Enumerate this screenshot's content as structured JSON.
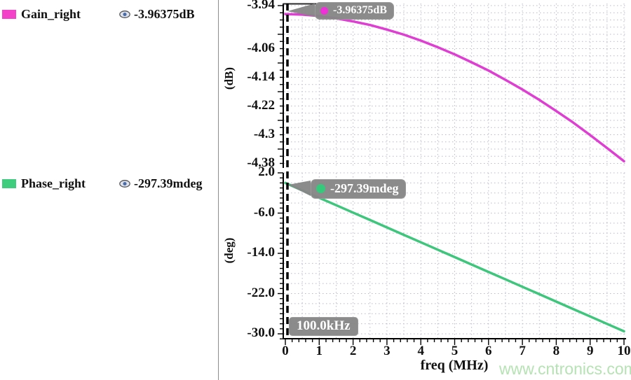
{
  "legend": {
    "items": [
      {
        "id": "gain",
        "label": "Gain_right",
        "value": "-3.96375dB",
        "swatch_color": "#f441c9"
      },
      {
        "id": "phase",
        "label": "Phase_right",
        "value": "-297.39mdeg",
        "swatch_color": "#3ecc7e"
      }
    ]
  },
  "marker": {
    "freq_label": "100.0kHz",
    "gain_value": "-3.96375dB",
    "phase_value": "-297.39mdeg"
  },
  "watermark": "www.cntronics.com",
  "colors": {
    "gain_curve": "#de3ed2",
    "phase_curve": "#3ec67c",
    "tooltip_bg": "#868686",
    "grid": "#b9b9c9",
    "marker_line": "#000000",
    "watermark": "#b6e3b3",
    "divider": "#8c8c8c"
  },
  "chart_data": [
    {
      "type": "line",
      "name": "Gain_right",
      "ylabel": "(dB)",
      "color": "#de3ed2",
      "xlim": [
        0,
        10
      ],
      "ylim": [
        -4.393,
        -3.934
      ],
      "grid": true,
      "yticks": {
        "labels": [
          "-3.94",
          "-4.06",
          "-4.14",
          "-4.22",
          "-4.3",
          "-4.38"
        ],
        "values": [
          -3.94,
          -4.06,
          -4.14,
          -4.22,
          -4.3,
          -4.38
        ]
      },
      "marker_point": {
        "freq_mhz": 0.1,
        "value_db": -3.96375,
        "label": "-3.96375dB"
      },
      "x": [
        0,
        0.5,
        1,
        1.5,
        2,
        2.5,
        3,
        3.5,
        4,
        4.5,
        5,
        5.5,
        6,
        6.5,
        7,
        7.5,
        8,
        8.5,
        9,
        9.5,
        10
      ],
      "y": [
        -3.9637,
        -3.9652,
        -3.969,
        -3.9755,
        -3.984,
        -3.994,
        -4.007,
        -4.021,
        -4.0375,
        -4.056,
        -4.076,
        -4.098,
        -4.121,
        -4.147,
        -4.174,
        -4.203,
        -4.234,
        -4.266,
        -4.301,
        -4.337,
        -4.374
      ]
    },
    {
      "type": "line",
      "name": "Phase_right",
      "ylabel": "(deg)",
      "xlabel": "freq (MHz)",
      "color": "#3ec67c",
      "xlim": [
        0,
        10
      ],
      "ylim": [
        -30.97,
        2.0
      ],
      "grid": true,
      "yticks": {
        "labels": [
          "2.0",
          "-6.0",
          "-14.0",
          "-22.0",
          "-30.0"
        ],
        "values": [
          2,
          -6,
          -14,
          -22,
          -30
        ]
      },
      "xticks": {
        "labels": [
          "0",
          "1",
          "2",
          "3",
          "4",
          "5",
          "6",
          "7",
          "8",
          "9",
          "10"
        ],
        "values": [
          0,
          1,
          2,
          3,
          4,
          5,
          6,
          7,
          8,
          9,
          10
        ]
      },
      "marker_point": {
        "freq_mhz": 0.1,
        "value_deg": -0.29739,
        "label": "-297.39mdeg"
      },
      "x": [
        0,
        0.5,
        1,
        1.5,
        2,
        2.5,
        3,
        3.5,
        4,
        4.5,
        5,
        5.5,
        6,
        6.5,
        7,
        7.5,
        8,
        8.5,
        9,
        9.5,
        10
      ],
      "y": [
        0,
        -1.48,
        -2.95,
        -4.43,
        -5.9,
        -7.38,
        -8.85,
        -10.33,
        -11.8,
        -13.28,
        -14.75,
        -16.23,
        -17.7,
        -19.18,
        -20.65,
        -22.13,
        -23.6,
        -25.08,
        -26.55,
        -28.03,
        -29.5
      ]
    }
  ]
}
